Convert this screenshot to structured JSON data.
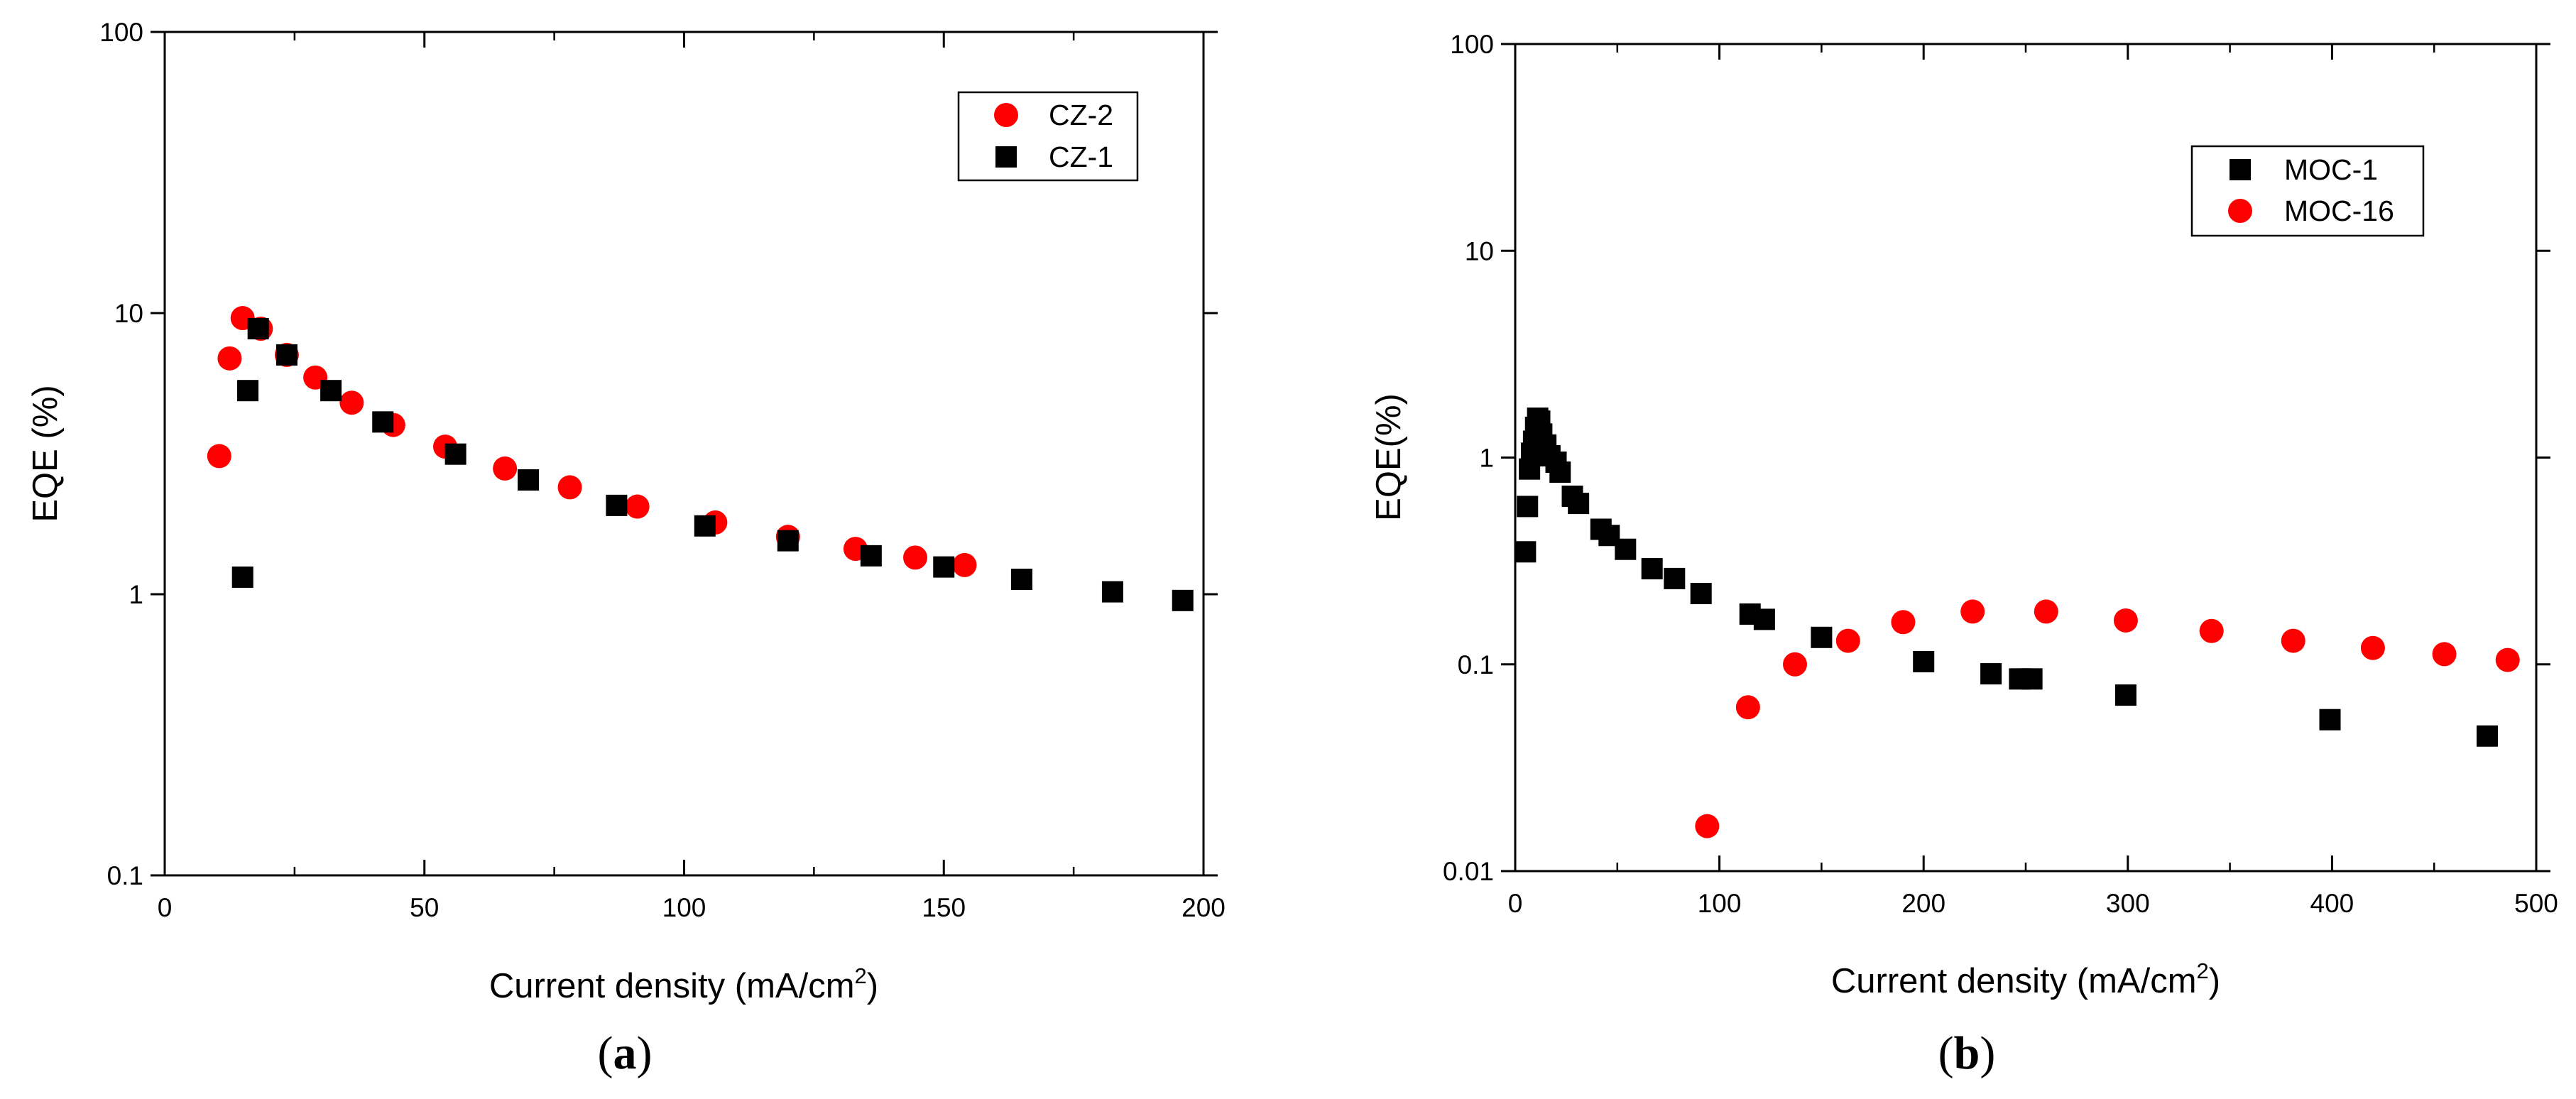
{
  "chart_data": [
    {
      "type": "scatter",
      "panel_label_open": "(",
      "panel_label_letter": "a",
      "panel_label_close": ")",
      "xlabel": "Current density (mA/cm",
      "xlabel_sup": "2",
      "xlabel_close": ")",
      "ylabel": "EQE (%)",
      "yscale": "log",
      "xlim": [
        0,
        200
      ],
      "ylim": [
        0.1,
        100
      ],
      "x_ticks": [
        0,
        50,
        100,
        150,
        200
      ],
      "x_tick_labels": [
        "0",
        "50",
        "100",
        "150",
        "200"
      ],
      "y_ticks": [
        0.1,
        1,
        10,
        100
      ],
      "y_tick_labels": [
        "0.1",
        "1",
        "10",
        "100"
      ],
      "legend_position": "top-right",
      "series": [
        {
          "name": "CZ-2",
          "marker": "circle",
          "color": "#ff0000",
          "x": [
            10.5,
            12.5,
            15,
            18.5,
            23.5,
            29,
            36,
            44,
            54,
            65.5,
            78,
            91,
            106,
            120,
            133,
            144.5,
            154
          ],
          "y": [
            3.1,
            6.9,
            9.6,
            8.8,
            7.1,
            5.9,
            4.8,
            4.0,
            3.35,
            2.8,
            2.4,
            2.05,
            1.8,
            1.6,
            1.45,
            1.35,
            1.27
          ]
        },
        {
          "name": "CZ-1",
          "marker": "square",
          "color": "#000000",
          "x": [
            15,
            16,
            18,
            23.5,
            32,
            42,
            56,
            70,
            87,
            104,
            120,
            136,
            150,
            165,
            182.5,
            196
          ],
          "y": [
            1.15,
            5.3,
            8.8,
            7.1,
            5.3,
            4.1,
            3.15,
            2.55,
            2.07,
            1.75,
            1.55,
            1.37,
            1.25,
            1.13,
            1.02,
            0.95
          ]
        }
      ]
    },
    {
      "type": "scatter",
      "panel_label_open": "(",
      "panel_label_letter": "b",
      "panel_label_close": ")",
      "xlabel": "Current density (mA/cm",
      "xlabel_sup": "2",
      "xlabel_close": ")",
      "ylabel": "EQE(%)",
      "yscale": "log",
      "xlim": [
        0,
        500
      ],
      "ylim": [
        0.01,
        100
      ],
      "x_ticks": [
        0,
        100,
        200,
        300,
        400,
        500
      ],
      "x_tick_labels": [
        "0",
        "100",
        "200",
        "300",
        "400",
        "500"
      ],
      "y_ticks": [
        0.01,
        0.1,
        1,
        10,
        100
      ],
      "y_tick_labels": [
        "0.01",
        "0.1",
        "1",
        "10",
        "100"
      ],
      "legend_position": "top-right",
      "series": [
        {
          "name": "MOC-1",
          "marker": "square",
          "color": "#000000",
          "x": [
            5,
            6,
            7,
            8,
            9,
            10,
            11,
            12,
            13,
            15,
            17,
            20,
            22,
            28,
            31,
            42,
            46,
            54,
            67,
            78,
            91,
            115,
            122,
            150,
            200,
            233,
            247,
            253,
            299,
            399,
            476
          ],
          "y": [
            0.35,
            0.58,
            0.88,
            1.05,
            1.2,
            1.4,
            1.55,
            1.5,
            1.3,
            1.15,
            1.02,
            0.95,
            0.85,
            0.65,
            0.6,
            0.45,
            0.42,
            0.36,
            0.29,
            0.26,
            0.22,
            0.175,
            0.165,
            0.135,
            0.103,
            0.09,
            0.085,
            0.085,
            0.071,
            0.054,
            0.045
          ]
        },
        {
          "name": "MOC-16",
          "marker": "circle",
          "color": "#ff0000",
          "x": [
            94,
            114,
            137,
            163,
            190,
            224,
            260,
            299,
            341,
            381,
            420,
            455,
            486
          ],
          "y": [
            0.0165,
            0.062,
            0.1,
            0.13,
            0.16,
            0.18,
            0.18,
            0.163,
            0.145,
            0.13,
            0.12,
            0.112,
            0.105
          ]
        }
      ]
    }
  ]
}
